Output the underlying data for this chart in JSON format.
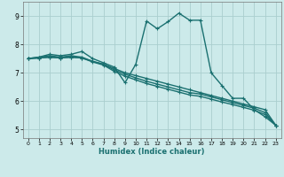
{
  "xlabel": "Humidex (Indice chaleur)",
  "bg_color": "#cceaea",
  "line_color": "#1a7070",
  "grid_color": "#aacece",
  "xlim": [
    -0.5,
    23.5
  ],
  "ylim": [
    4.7,
    9.5
  ],
  "xticks": [
    0,
    1,
    2,
    3,
    4,
    5,
    6,
    7,
    8,
    9,
    10,
    11,
    12,
    13,
    14,
    15,
    16,
    17,
    18,
    19,
    20,
    21,
    22,
    23
  ],
  "yticks": [
    5,
    6,
    7,
    8,
    9
  ],
  "series": [
    [
      7.5,
      7.55,
      7.65,
      7.6,
      7.65,
      7.75,
      7.5,
      7.35,
      7.2,
      6.65,
      7.3,
      8.82,
      8.55,
      8.8,
      9.1,
      8.85,
      8.85,
      7.0,
      6.55,
      6.1,
      6.1,
      5.7,
      5.45,
      5.15
    ],
    [
      7.5,
      7.55,
      7.6,
      7.55,
      7.6,
      7.55,
      7.4,
      7.3,
      7.15,
      7.0,
      6.9,
      6.8,
      6.7,
      6.6,
      6.5,
      6.4,
      6.3,
      6.2,
      6.1,
      6.0,
      5.9,
      5.8,
      5.7,
      5.15
    ],
    [
      7.5,
      7.52,
      7.55,
      7.52,
      7.55,
      7.52,
      7.4,
      7.3,
      7.1,
      6.95,
      6.82,
      6.7,
      6.6,
      6.5,
      6.4,
      6.3,
      6.25,
      6.15,
      6.05,
      5.95,
      5.85,
      5.75,
      5.6,
      5.15
    ],
    [
      7.5,
      7.52,
      7.55,
      7.52,
      7.55,
      7.52,
      7.38,
      7.27,
      7.05,
      6.88,
      6.75,
      6.62,
      6.52,
      6.42,
      6.32,
      6.22,
      6.17,
      6.07,
      5.97,
      5.88,
      5.78,
      5.68,
      5.53,
      5.15
    ]
  ]
}
